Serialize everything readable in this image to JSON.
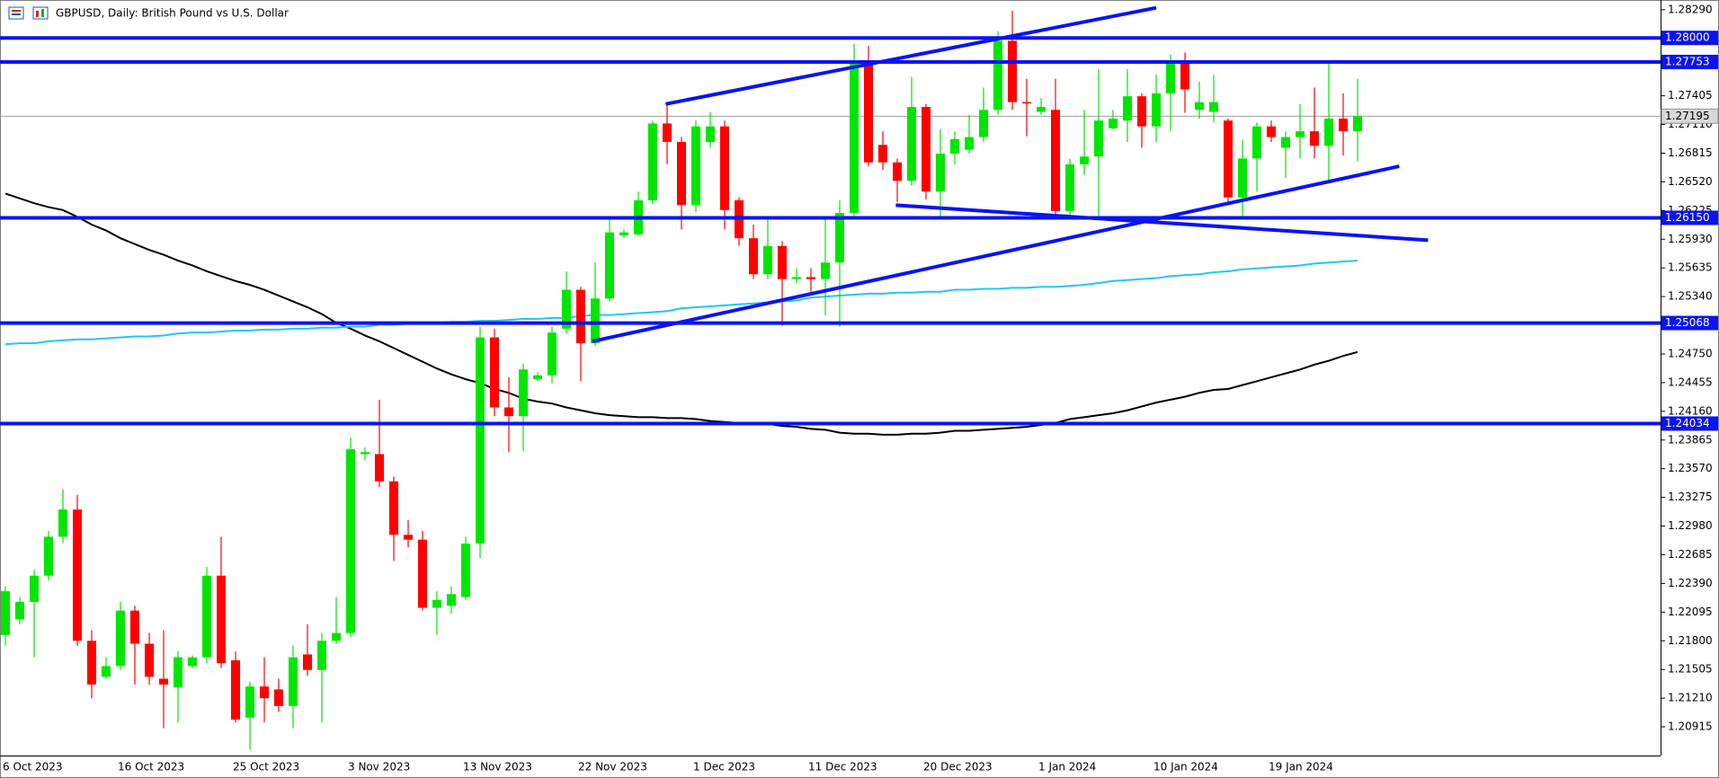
{
  "chart_data": {
    "type": "candlestick",
    "title": "GBPUSD, Daily: British Pound vs U.S. Dollar",
    "categories": [
      "6 Oct 2023",
      null,
      null,
      null,
      null,
      null,
      null,
      null,
      "16 Oct 2023",
      null,
      null,
      null,
      null,
      null,
      null,
      null,
      "25 Oct 2023",
      null,
      null,
      null,
      null,
      null,
      null,
      null,
      "3 Nov 2023",
      null,
      null,
      null,
      null,
      null,
      null,
      null,
      "13 Nov 2023",
      null,
      null,
      null,
      null,
      null,
      null,
      null,
      "22 Nov 2023",
      null,
      null,
      null,
      null,
      null,
      null,
      null,
      "1 Dec 2023",
      null,
      null,
      null,
      null,
      null,
      null,
      null,
      "11 Dec 2023",
      null,
      null,
      null,
      null,
      null,
      null,
      null,
      "20 Dec 2023",
      null,
      null,
      null,
      null,
      null,
      null,
      null,
      "1 Jan 2024",
      null,
      null,
      null,
      null,
      null,
      null,
      null,
      "10 Jan 2024",
      null,
      null,
      null,
      null,
      null,
      null,
      null,
      "19 Jan 2024",
      null,
      null,
      null,
      null,
      null,
      null
    ],
    "open": [
      1.2186,
      1.2202,
      1.222,
      1.2247,
      1.2287,
      1.2315,
      1.218,
      1.2143,
      1.2154,
      1.2211,
      1.2177,
      1.2141,
      1.2132,
      1.2154,
      1.2163,
      1.2247,
      1.216,
      1.2101,
      1.2133,
      1.213,
      1.2113,
      1.2166,
      1.215,
      1.218,
      1.2188,
      1.2372,
      1.2372,
      1.2344,
      1.2289,
      1.2284,
      1.2214,
      1.2216,
      1.2225,
      1.228,
      1.2492,
      1.242,
      1.2411,
      1.2449,
      1.2453,
      1.2501,
      1.2541,
      1.2486,
      1.2532,
      1.2597,
      1.2598,
      1.2633,
      1.2712,
      1.2693,
      1.2628,
      1.2693,
      1.2709,
      1.2633,
      1.2594,
      1.2557,
      1.2586,
      1.2552,
      1.2554,
      1.2552,
      1.2569,
      1.262,
      1.2774,
      1.269,
      1.2672,
      1.2653,
      1.2729,
      1.2642,
      1.2681,
      1.2685,
      1.2698,
      1.2726,
      1.2797,
      1.2734,
      1.2724,
      1.2726,
      1.2622,
      1.267,
      1.2678,
      1.2707,
      1.2715,
      1.274,
      1.2709,
      1.2743,
      1.2775,
      1.2726,
      1.2724,
      1.2715,
      1.2636,
      1.2676,
      1.2709,
      1.2687,
      1.2698,
      1.2704,
      1.2689,
      1.2717,
      1.2704
    ],
    "high": [
      1.2236,
      1.2225,
      1.2253,
      1.2293,
      1.2336,
      1.233,
      1.2191,
      1.2163,
      1.222,
      1.2216,
      1.2188,
      1.2191,
      1.2169,
      1.2165,
      1.2256,
      1.2287,
      1.2169,
      1.2138,
      1.2163,
      1.2141,
      1.2175,
      1.2197,
      1.2188,
      1.2225,
      1.2389,
      1.2379,
      1.2428,
      1.2349,
      1.2304,
      1.2293,
      1.2231,
      1.2236,
      1.2287,
      1.2503,
      1.2501,
      1.2451,
      1.2465,
      1.2456,
      1.2503,
      1.256,
      1.2544,
      1.2569,
      1.2614,
      1.2603,
      1.2642,
      1.2715,
      1.2732,
      1.2698,
      1.2715,
      1.2724,
      1.2715,
      1.2636,
      1.2608,
      1.2614,
      1.2591,
      1.2563,
      1.2563,
      1.2614,
      1.2633,
      1.2794,
      1.2792,
      1.2704,
      1.2676,
      1.276,
      1.2732,
      1.2706,
      1.2704,
      1.2721,
      1.2749,
      1.2807,
      1.2828,
      1.2758,
      1.2738,
      1.2758,
      1.2676,
      1.2726,
      1.2768,
      1.2726,
      1.2768,
      1.2743,
      1.2762,
      1.2783,
      1.2785,
      1.2755,
      1.2762,
      1.2717,
      1.2695,
      1.2713,
      1.2715,
      1.2704,
      1.2732,
      1.2749,
      1.2774,
      1.2743,
      1.2758
    ],
    "low": [
      1.2175,
      1.2197,
      1.2163,
      1.2242,
      1.2281,
      1.2175,
      1.2121,
      1.2141,
      1.215,
      1.2135,
      1.2135,
      1.209,
      1.2096,
      1.2152,
      1.2157,
      1.2152,
      1.2096,
      1.2068,
      1.2096,
      1.2107,
      1.209,
      1.2144,
      1.2096,
      1.2177,
      1.2184,
      1.2366,
      1.2338,
      1.2262,
      1.2276,
      1.2211,
      1.2186,
      1.2208,
      1.2222,
      1.2265,
      1.2411,
      1.2374,
      1.2375,
      1.2447,
      1.2445,
      1.2496,
      1.2447,
      1.2483,
      1.2529,
      1.2594,
      1.2597,
      1.2629,
      1.267,
      1.2603,
      1.2621,
      1.2687,
      1.2603,
      1.2586,
      1.2552,
      1.2552,
      1.2504,
      1.2548,
      1.2535,
      1.2515,
      1.2503,
      1.2616,
      1.2668,
      1.2664,
      1.2631,
      1.2648,
      1.2634,
      1.2614,
      1.267,
      1.2681,
      1.2693,
      1.2721,
      1.2726,
      1.2699,
      1.2721,
      1.2614,
      1.2616,
      1.2659,
      1.2617,
      1.2706,
      1.2693,
      1.2687,
      1.2693,
      1.2704,
      1.2723,
      1.2717,
      1.2713,
      1.2631,
      1.2614,
      1.2642,
      1.2693,
      1.2656,
      1.2676,
      1.2676,
      1.2653,
      1.2679,
      1.2673
    ],
    "close": [
      1.2231,
      1.222,
      1.2247,
      1.2287,
      1.2315,
      1.218,
      1.2135,
      1.2154,
      1.2211,
      1.2177,
      1.2143,
      1.2135,
      1.2163,
      1.2163,
      1.2247,
      1.2157,
      1.2099,
      1.2133,
      1.2121,
      1.2113,
      1.2163,
      1.215,
      1.218,
      1.2188,
      1.2377,
      1.2374,
      1.2344,
      1.2289,
      1.2284,
      1.2214,
      1.2222,
      1.2228,
      1.228,
      1.2492,
      1.242,
      1.2411,
      1.2459,
      1.2453,
      1.2497,
      1.2541,
      1.2486,
      1.2532,
      1.26,
      1.26,
      1.2633,
      1.2712,
      1.2693,
      1.2628,
      1.2709,
      1.2709,
      1.2623,
      1.2594,
      1.2557,
      1.2586,
      1.2552,
      1.2554,
      1.2552,
      1.2569,
      1.262,
      1.2774,
      1.2672,
      1.2672,
      1.2653,
      1.2729,
      1.2642,
      1.2681,
      1.2696,
      1.2698,
      1.2726,
      1.2797,
      1.2734,
      1.2733,
      1.2729,
      1.2622,
      1.267,
      1.2678,
      1.2715,
      1.2717,
      1.274,
      1.2709,
      1.2743,
      1.2775,
      1.2747,
      1.2734,
      1.2734,
      1.2636,
      1.2676,
      1.2709,
      1.2698,
      1.2698,
      1.2704,
      1.2689,
      1.2717,
      1.2704,
      1.27195
    ],
    "up_color": "#00e600",
    "down_color": "#ff0000",
    "moving_averages": [
      {
        "color": "#000000",
        "values": [
          1.264,
          1.2635,
          1.263,
          1.2626,
          1.2623,
          1.2616,
          1.2608,
          1.2602,
          1.2594,
          1.2588,
          1.2582,
          1.2577,
          1.2571,
          1.2566,
          1.256,
          1.2555,
          1.255,
          1.2546,
          1.2541,
          1.2535,
          1.2529,
          1.2523,
          1.2516,
          1.2507,
          1.2501,
          1.2494,
          1.2488,
          1.2481,
          1.2474,
          1.2467,
          1.246,
          1.2454,
          1.2449,
          1.2445,
          1.2439,
          1.2435,
          1.2429,
          1.2426,
          1.2424,
          1.242,
          1.2417,
          1.2414,
          1.2412,
          1.2411,
          1.241,
          1.241,
          1.2409,
          1.2409,
          1.2408,
          1.2406,
          1.2405,
          1.2404,
          1.2403,
          1.2403,
          1.2401,
          1.24,
          1.2398,
          1.2397,
          1.2394,
          1.2393,
          1.2393,
          1.2392,
          1.2392,
          1.2393,
          1.2393,
          1.2394,
          1.2396,
          1.2396,
          1.2397,
          1.2398,
          1.2399,
          1.24,
          1.2402,
          1.2404,
          1.2408,
          1.241,
          1.2412,
          1.2414,
          1.2417,
          1.2421,
          1.2425,
          1.2428,
          1.2431,
          1.2435,
          1.2438,
          1.2439,
          1.2443,
          1.2447,
          1.2451,
          1.2455,
          1.2459,
          1.2464,
          1.2468,
          1.2473,
          1.2477
        ]
      },
      {
        "color": "#1ec8f0",
        "values": [
          1.2485,
          1.2486,
          1.2486,
          1.2488,
          1.2489,
          1.249,
          1.249,
          1.2491,
          1.2492,
          1.2493,
          1.2493,
          1.2494,
          1.2496,
          1.2497,
          1.2497,
          1.2498,
          1.2499,
          1.2499,
          1.25,
          1.25,
          1.2501,
          1.2501,
          1.2502,
          1.2502,
          1.2503,
          1.2503,
          1.2505,
          1.2505,
          1.2506,
          1.2506,
          1.2507,
          1.2508,
          1.2508,
          1.2509,
          1.2509,
          1.251,
          1.2511,
          1.2511,
          1.2512,
          1.2512,
          1.2514,
          1.2515,
          1.2515,
          1.2516,
          1.2517,
          1.2518,
          1.2519,
          1.2522,
          1.2523,
          1.2524,
          1.2525,
          1.2526,
          1.2527,
          1.2528,
          1.2529,
          1.253,
          1.2533,
          1.2534,
          1.2535,
          1.2536,
          1.2537,
          1.2537,
          1.2538,
          1.2538,
          1.2539,
          1.2539,
          1.2541,
          1.2541,
          1.2542,
          1.2542,
          1.2543,
          1.2543,
          1.2544,
          1.2544,
          1.2545,
          1.2546,
          1.2548,
          1.255,
          1.2551,
          1.2552,
          1.2553,
          1.2555,
          1.2556,
          1.2557,
          1.2559,
          1.256,
          1.2562,
          1.2563,
          1.2564,
          1.2565,
          1.2566,
          1.2568,
          1.2569,
          1.257,
          1.2571
        ]
      }
    ],
    "trendlines": [
      {
        "x": [
          45.9,
          80.0
        ],
        "y": [
          1.2732,
          1.2831
        ]
      },
      {
        "x": [
          40.8,
          96.9
        ],
        "y": [
          1.2488,
          1.2668
        ]
      },
      {
        "x": [
          61.9,
          98.9
        ],
        "y": [
          1.2628,
          1.2592
        ]
      }
    ],
    "levels": [
      {
        "value": 1.28,
        "label": "1.28000"
      },
      {
        "value": 1.27753,
        "label": "1.27753"
      },
      {
        "value": 1.2615,
        "label": "1.26150"
      },
      {
        "value": 1.25068,
        "label": "1.25068"
      },
      {
        "value": 1.24034,
        "label": "1.24034"
      }
    ],
    "level_color": "#0a14f0",
    "current_price": {
      "value": 1.27195,
      "label": "1.27195"
    },
    "ylim": [
      1.2062,
      1.2839
    ],
    "yticks": [
      {
        "value": 1.2829,
        "label": "1.28290"
      },
      {
        "value": 1.27405,
        "label": "1.27405"
      },
      {
        "value": 1.2711,
        "label": "1.27110"
      },
      {
        "value": 1.26815,
        "label": "1.26815"
      },
      {
        "value": 1.2652,
        "label": "1.26520"
      },
      {
        "value": 1.26225,
        "label": "1.26225"
      },
      {
        "value": 1.2593,
        "label": "1.25930"
      },
      {
        "value": 1.25635,
        "label": "1.25635"
      },
      {
        "value": 1.2534,
        "label": "1.25340"
      },
      {
        "value": 1.2475,
        "label": "1.24750"
      },
      {
        "value": 1.24455,
        "label": "1.24455"
      },
      {
        "value": 1.2416,
        "label": "1.24160"
      },
      {
        "value": 1.23865,
        "label": "1.23865"
      },
      {
        "value": 1.2357,
        "label": "1.23570"
      },
      {
        "value": 1.23275,
        "label": "1.23275"
      },
      {
        "value": 1.2298,
        "label": "1.22980"
      },
      {
        "value": 1.22685,
        "label": "1.22685"
      },
      {
        "value": 1.2239,
        "label": "1.22390"
      },
      {
        "value": 1.22095,
        "label": "1.22095"
      },
      {
        "value": 1.218,
        "label": "1.21800"
      },
      {
        "value": 1.21505,
        "label": "1.21505"
      },
      {
        "value": 1.2121,
        "label": "1.21210"
      },
      {
        "value": 1.20915,
        "label": "1.20915"
      }
    ]
  }
}
